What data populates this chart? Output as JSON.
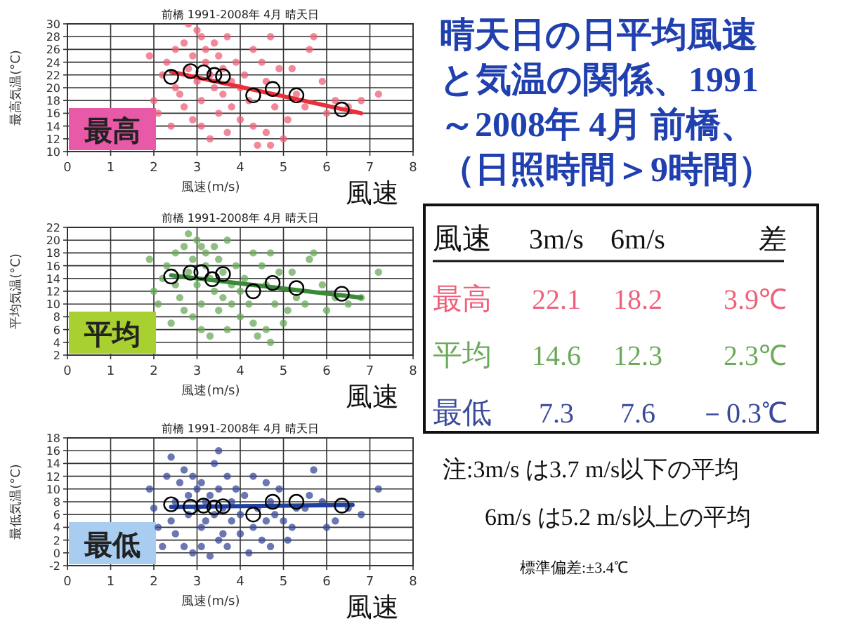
{
  "chart_data": [
    {
      "type": "scatter",
      "title": "前橋 1991-2008年 4月 晴天日",
      "xlabel": "風速(m/s)",
      "ylabel": "最高気温(°C)",
      "xlim": [
        0,
        8
      ],
      "xticks": [
        0,
        1,
        2,
        3,
        4,
        5,
        6,
        7,
        8
      ],
      "ylim": [
        10,
        30
      ],
      "yticks": [
        10,
        12,
        14,
        16,
        18,
        20,
        22,
        24,
        26,
        28,
        30
      ],
      "grid": true,
      "annotations": [
        "最高",
        "風速"
      ],
      "series": [
        {
          "color": "#f0607a",
          "marker": "circle",
          "x": [
            1.9,
            2.0,
            2.1,
            2.2,
            2.3,
            2.4,
            2.5,
            2.5,
            2.6,
            2.7,
            2.7,
            2.8,
            2.8,
            2.9,
            2.9,
            3.0,
            3.0,
            3.1,
            3.1,
            3.1,
            3.2,
            3.2,
            3.3,
            3.3,
            3.4,
            3.4,
            3.5,
            3.5,
            3.6,
            3.6,
            3.7,
            3.7,
            3.8,
            3.8,
            3.9,
            4.0,
            4.0,
            4.1,
            4.2,
            4.3,
            4.3,
            4.4,
            4.5,
            4.6,
            4.6,
            4.7,
            4.7,
            4.8,
            4.9,
            5.0,
            5.1,
            5.2,
            5.3,
            5.5,
            5.6,
            5.7,
            5.9,
            6.0,
            6.2,
            6.5,
            6.8,
            7.2
          ],
          "values": [
            25,
            18,
            16,
            22,
            24,
            14,
            26,
            20,
            19,
            27,
            17,
            30,
            23,
            25,
            15,
            29,
            21,
            28,
            18,
            14,
            26,
            24,
            22,
            12,
            20,
            27,
            25,
            16,
            23,
            19,
            28,
            13,
            21,
            17,
            24,
            15,
            20,
            22,
            18,
            26,
            14,
            11,
            24,
            13,
            21,
            28,
            11,
            17,
            23,
            12,
            15,
            23,
            19,
            17,
            26,
            28,
            21,
            16,
            18,
            17,
            18,
            19
          ]
        },
        {
          "color": "#000000",
          "marker": "circle",
          "x": [
            2.4,
            2.85,
            3.15,
            3.4,
            3.6,
            4.3,
            4.75,
            5.3,
            6.35
          ],
          "values": [
            21.7,
            22.6,
            22.4,
            22,
            21.8,
            18.8,
            19.8,
            18.8,
            16.6
          ]
        },
        {
          "type": "line",
          "color": "#e8303a",
          "x": [
            2.4,
            6.8
          ],
          "values": [
            22.5,
            16
          ]
        }
      ]
    },
    {
      "type": "scatter",
      "title": "前橋 1991-2008年 4月 晴天日",
      "xlabel": "風速(m/s)",
      "ylabel": "平均気温(°C)",
      "xlim": [
        0,
        8
      ],
      "xticks": [
        0,
        1,
        2,
        3,
        4,
        5,
        6,
        7,
        8
      ],
      "ylim": [
        2,
        22
      ],
      "yticks": [
        2,
        4,
        6,
        8,
        10,
        12,
        14,
        16,
        18,
        20,
        22
      ],
      "grid": true,
      "annotations": [
        "平均",
        "風速"
      ],
      "series": [
        {
          "color": "#6aaa5a",
          "marker": "circle",
          "x": [
            1.9,
            2.0,
            2.1,
            2.2,
            2.3,
            2.4,
            2.5,
            2.5,
            2.6,
            2.7,
            2.7,
            2.8,
            2.8,
            2.9,
            2.9,
            3.0,
            3.0,
            3.1,
            3.1,
            3.1,
            3.2,
            3.2,
            3.3,
            3.3,
            3.4,
            3.4,
            3.5,
            3.5,
            3.6,
            3.6,
            3.7,
            3.7,
            3.8,
            3.8,
            3.9,
            4.0,
            4.0,
            4.1,
            4.2,
            4.3,
            4.3,
            4.4,
            4.5,
            4.6,
            4.6,
            4.7,
            4.7,
            4.8,
            4.9,
            5.0,
            5.1,
            5.2,
            5.3,
            5.5,
            5.6,
            5.7,
            5.9,
            6.0,
            6.2,
            6.5,
            6.8,
            7.2
          ],
          "values": [
            17,
            12,
            10,
            14,
            16,
            7,
            18,
            13,
            11,
            19,
            9,
            21,
            15,
            17,
            8,
            20,
            13,
            19,
            10,
            6,
            18,
            16,
            14,
            5,
            12,
            19,
            17,
            9,
            15,
            11,
            20,
            6,
            13,
            10,
            16,
            8,
            12,
            14,
            10,
            18,
            7,
            5,
            16,
            6,
            13,
            18,
            4,
            10,
            15,
            7,
            9,
            15,
            11,
            10,
            17,
            18,
            13,
            9,
            11,
            10,
            11,
            15
          ]
        },
        {
          "color": "#000000",
          "marker": "circle",
          "x": [
            2.4,
            2.85,
            3.1,
            3.35,
            3.6,
            4.3,
            4.75,
            5.3,
            6.35
          ],
          "values": [
            14.3,
            14.9,
            15,
            13.9,
            14.7,
            12,
            13.3,
            12.5,
            11.6
          ]
        },
        {
          "type": "line",
          "color": "#3a8a3a",
          "x": [
            2.4,
            6.8
          ],
          "values": [
            14.5,
            11
          ]
        }
      ]
    },
    {
      "type": "scatter",
      "title": "前橋 1991-2008年 4月 晴天日",
      "xlabel": "風速(m/s)",
      "ylabel": "最低気温(°C)",
      "xlim": [
        0,
        8
      ],
      "xticks": [
        0,
        1,
        2,
        3,
        4,
        5,
        6,
        7,
        8
      ],
      "ylim": [
        -2,
        18
      ],
      "yticks": [
        -2,
        0,
        2,
        4,
        6,
        8,
        10,
        12,
        14,
        16,
        18
      ],
      "grid": true,
      "annotations": [
        "最低",
        "風速"
      ],
      "series": [
        {
          "color": "#3a4a9a",
          "marker": "circle",
          "x": [
            1.9,
            2.0,
            2.1,
            2.2,
            2.3,
            2.4,
            2.4,
            2.5,
            2.5,
            2.6,
            2.7,
            2.7,
            2.8,
            2.8,
            2.9,
            2.9,
            3.0,
            3.0,
            3.1,
            3.1,
            3.1,
            3.2,
            3.2,
            3.3,
            3.3,
            3.4,
            3.4,
            3.5,
            3.5,
            3.5,
            3.6,
            3.6,
            3.7,
            3.7,
            3.8,
            3.8,
            3.9,
            4.0,
            4.0,
            4.1,
            4.2,
            4.3,
            4.3,
            4.4,
            4.5,
            4.6,
            4.6,
            4.7,
            4.7,
            4.8,
            4.9,
            5.0,
            5.1,
            5.2,
            5.3,
            5.5,
            5.6,
            5.7,
            5.9,
            6.0,
            6.2,
            6.5,
            6.8,
            7.2
          ],
          "values": [
            10,
            7,
            4,
            1,
            12,
            15,
            5,
            8,
            3,
            11,
            1,
            13,
            6,
            9,
            0,
            12,
            7,
            10,
            4,
            1,
            11,
            8,
            5,
            -0.5,
            9,
            14,
            6,
            16,
            2,
            10,
            7,
            3,
            12,
            1,
            8,
            5,
            10,
            3,
            6,
            9,
            0,
            4,
            12,
            7,
            2,
            11,
            5,
            8,
            1,
            6,
            10,
            5,
            2,
            4,
            7,
            7,
            9,
            13,
            8,
            4,
            5,
            7,
            6,
            10
          ]
        },
        {
          "color": "#000000",
          "marker": "circle",
          "x": [
            2.4,
            2.85,
            3.15,
            3.4,
            3.6,
            4.3,
            4.75,
            5.3,
            6.35
          ],
          "values": [
            7.6,
            7.2,
            7.4,
            7.1,
            7.3,
            6,
            8,
            8,
            7.4
          ]
        },
        {
          "type": "line",
          "color": "#2040a0",
          "x": [
            2.4,
            6.6
          ],
          "values": [
            7.2,
            7.5
          ]
        }
      ]
    },
    {
      "type": "other",
      "title": "晴天日の日平均風速と気温の関係、1991～2008年 4月 前橋、（日照時間＞9時間）",
      "annotations": [
        "風速",
        "3m/s",
        "6m/s",
        "差",
        "最高",
        "22.1",
        "18.2",
        "3.9℃",
        "平均",
        "14.6",
        "12.3",
        "2.3℃",
        "最低",
        "7.3",
        "7.6",
        "－0.3℃",
        "注:3m/s は3.7 m/s以下の平均",
        "6m/s は5.2 m/s以上の平均",
        "標準偏差:±3.4℃"
      ]
    }
  ]
}
